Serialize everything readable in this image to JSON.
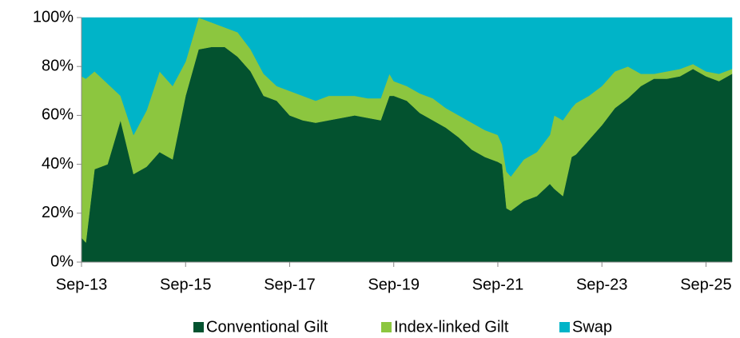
{
  "chart_data": {
    "type": "stacked_area",
    "x": [
      "2013-09",
      "2013-10",
      "2013-12",
      "2014-03",
      "2014-06",
      "2014-09",
      "2014-12",
      "2015-03",
      "2015-06",
      "2015-09",
      "2015-12",
      "2016-03",
      "2016-06",
      "2016-09",
      "2016-12",
      "2017-03",
      "2017-06",
      "2017-09",
      "2017-12",
      "2018-03",
      "2018-06",
      "2018-09",
      "2018-12",
      "2019-03",
      "2019-06",
      "2019-08",
      "2019-09",
      "2019-12",
      "2020-03",
      "2020-06",
      "2020-09",
      "2020-12",
      "2021-03",
      "2021-06",
      "2021-09",
      "2021-10",
      "2021-11",
      "2021-12",
      "2022-03",
      "2022-06",
      "2022-09",
      "2022-10",
      "2022-12",
      "2023-02",
      "2023-03",
      "2023-06",
      "2023-09",
      "2023-12",
      "2024-03",
      "2024-06",
      "2024-09",
      "2024-12",
      "2025-03",
      "2025-06",
      "2025-09",
      "2025-12",
      "2026-03"
    ],
    "series": [
      {
        "name": "Conventional Gilt",
        "color": "#03522f",
        "values": [
          10,
          8,
          38,
          40,
          58,
          36,
          39,
          45,
          42,
          68,
          87,
          88,
          88,
          84,
          78,
          68,
          66,
          60,
          58,
          57,
          58,
          59,
          60,
          59,
          58,
          68,
          68,
          66,
          61,
          58,
          55,
          51,
          46,
          43,
          41,
          40,
          22,
          21,
          25,
          27,
          32,
          30,
          27,
          43,
          44,
          50,
          56,
          63,
          67,
          72,
          75,
          75,
          76,
          79,
          76,
          74,
          77
        ]
      },
      {
        "name": "Index-linked Gilt",
        "color": "#8cc63f",
        "values": [
          66,
          67,
          40,
          33,
          10,
          16,
          23,
          33,
          30,
          14,
          13,
          10,
          8,
          10,
          9,
          9,
          6,
          10,
          10,
          9,
          10,
          9,
          8,
          8,
          9,
          9,
          6,
          6,
          8,
          9,
          8,
          9,
          11,
          11,
          11,
          8,
          15,
          14,
          17,
          18,
          20,
          30,
          31,
          20,
          21,
          18,
          16,
          15,
          13,
          5,
          2,
          3,
          3,
          2,
          2,
          3,
          2
        ]
      },
      {
        "name": "Swap",
        "color": "#00b4c8",
        "values": [
          24,
          25,
          22,
          27,
          32,
          48,
          38,
          22,
          28,
          18,
          0,
          2,
          4,
          6,
          13,
          23,
          28,
          30,
          32,
          34,
          32,
          32,
          32,
          33,
          33,
          23,
          26,
          28,
          31,
          33,
          37,
          40,
          43,
          46,
          48,
          52,
          63,
          65,
          58,
          55,
          48,
          40,
          42,
          37,
          35,
          32,
          28,
          22,
          20,
          23,
          23,
          22,
          21,
          19,
          22,
          23,
          21
        ]
      }
    ],
    "xlim": [
      "2013-09",
      "2026-03"
    ],
    "xticks": [
      {
        "value": "2013-09",
        "label": "Sep-13"
      },
      {
        "value": "2015-09",
        "label": "Sep-15"
      },
      {
        "value": "2017-09",
        "label": "Sep-17"
      },
      {
        "value": "2019-09",
        "label": "Sep-19"
      },
      {
        "value": "2021-09",
        "label": "Sep-21"
      },
      {
        "value": "2023-09",
        "label": "Sep-23"
      },
      {
        "value": "2025-09",
        "label": "Sep-25"
      }
    ],
    "ylim": [
      0,
      100
    ],
    "yticks": [
      {
        "value": 0,
        "label": "0%"
      },
      {
        "value": 20,
        "label": "20%"
      },
      {
        "value": 40,
        "label": "40%"
      },
      {
        "value": 60,
        "label": "60%"
      },
      {
        "value": 80,
        "label": "80%"
      },
      {
        "value": 100,
        "label": "100%"
      }
    ],
    "legend": "bottom"
  }
}
